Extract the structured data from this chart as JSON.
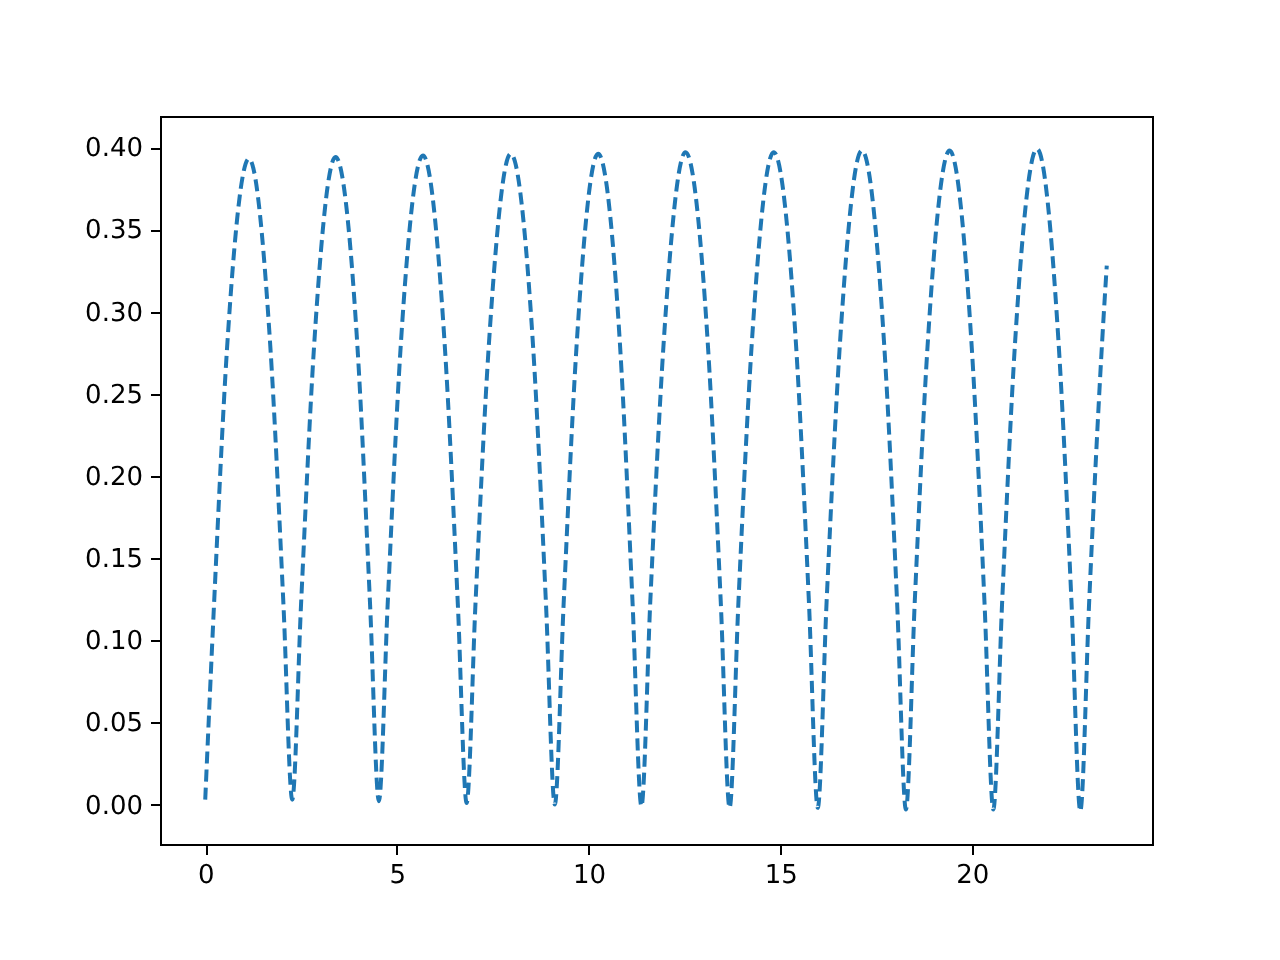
{
  "chart_data": {
    "type": "line",
    "xlim": [
      -1.18,
      24.7
    ],
    "ylim": [
      -0.024,
      0.419
    ],
    "xticks": [
      0,
      5,
      10,
      15,
      20
    ],
    "yticks": [
      {
        "value": 0,
        "label": "0.00"
      },
      {
        "value": 0.05,
        "label": "0.05"
      },
      {
        "value": 0.1,
        "label": "0.10"
      },
      {
        "value": 0.15,
        "label": "0.15"
      },
      {
        "value": 0.2,
        "label": "0.20"
      },
      {
        "value": 0.25,
        "label": "0.25"
      },
      {
        "value": 0.3,
        "label": "0.30"
      },
      {
        "value": 0.35,
        "label": "0.35"
      },
      {
        "value": 0.4,
        "label": "0.40"
      }
    ],
    "grid": false,
    "line_style": "dashed",
    "marker": "none",
    "series": [
      {
        "color": "#1f77b4",
        "x": [
          0,
          0.23,
          0.57,
          1.14,
          1.7,
          2.04,
          2.27,
          2.5,
          2.84,
          3.4,
          3.97,
          4.3,
          4.53,
          4.76,
          5.1,
          5.68,
          6.25,
          6.59,
          6.82,
          7.05,
          7.4,
          7.97,
          8.55,
          8.89,
          9.12,
          9.35,
          9.69,
          10.25,
          10.82,
          11.15,
          11.38,
          11.61,
          11.96,
          12.53,
          13.11,
          13.45,
          13.68,
          13.91,
          14.26,
          14.83,
          15.41,
          15.75,
          15.98,
          16.21,
          16.56,
          17.13,
          17.71,
          18.05,
          18.28,
          18.51,
          18.85,
          19.42,
          19.99,
          20.33,
          20.56,
          20.79,
          21.13,
          21.7,
          22.26,
          22.6,
          22.83,
          23.06,
          23.4,
          23.52
        ],
        "values": [
          0.003,
          0.122,
          0.278,
          0.393,
          0.278,
          0.122,
          0.003,
          0.122,
          0.279,
          0.394,
          0.279,
          0.122,
          0.002,
          0.122,
          0.279,
          0.395,
          0.279,
          0.122,
          0.001,
          0.122,
          0.28,
          0.396,
          0.28,
          0.122,
          0,
          0.122,
          0.28,
          0.396,
          0.28,
          0.122,
          -0.001,
          0.123,
          0.281,
          0.397,
          0.281,
          0.123,
          -0.002,
          0.123,
          0.281,
          0.397,
          0.281,
          0.123,
          -0.002,
          0.123,
          0.281,
          0.398,
          0.281,
          0.123,
          -0.003,
          0.123,
          0.281,
          0.398,
          0.281,
          0.123,
          -0.003,
          0.123,
          0.282,
          0.399,
          0.282,
          0.123,
          -0.004,
          0.123,
          0.282,
          0.328
        ]
      }
    ]
  }
}
